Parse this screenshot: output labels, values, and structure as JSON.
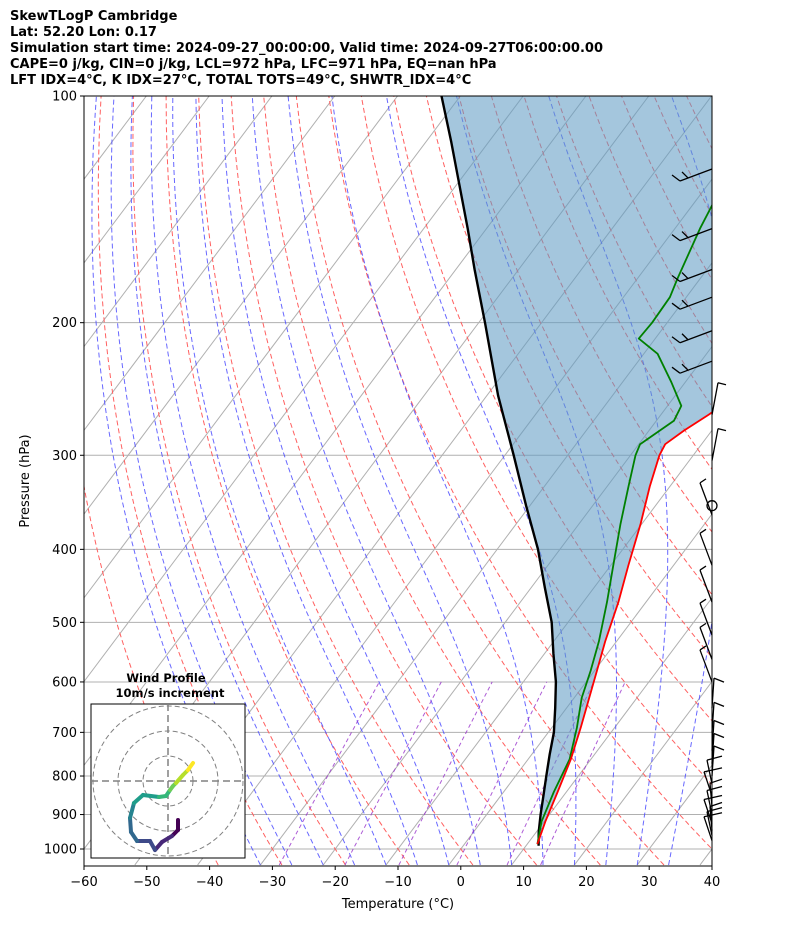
{
  "header": {
    "line1": "SkewTLogP Cambridge",
    "line2": "Lat: 52.20   Lon: 0.17",
    "line3": "Simulation start time: 2024-09-27_00:00:00, Valid time: 2024-09-27T06:00:00.00",
    "line4": "CAPE=0 j/kg, CIN=0 j/kg, LCL=972 hPa, LFC=971 hPa, EQ=nan hPa",
    "line5": "LFT IDX=4°C, K IDX=27°C, TOTAL TOTS=49°C, SHWTR_IDX=4°C"
  },
  "chart_data": {
    "type": "line",
    "subtype": "skew-T log-P diagram",
    "xlabel": "Temperature (°C)",
    "ylabel": "Pressure (hPa)",
    "xlim": [
      -60,
      40
    ],
    "ylim": [
      1050,
      100
    ],
    "y_scale": "log",
    "x_ticks": [
      -60,
      -50,
      -40,
      -30,
      -20,
      -10,
      0,
      10,
      20,
      30,
      40
    ],
    "y_ticks": [
      1000,
      900,
      800,
      700,
      600,
      500,
      400,
      300,
      200,
      100
    ],
    "grid": true,
    "background_lines": [
      "dry adiabats (red dashed)",
      "moist adiabats (blue dashed)",
      "mixing ratio lines (purple dashed)",
      "isotherms (grey)"
    ],
    "series": [
      {
        "role": "temperature",
        "color": "#ff0000",
        "points": [
          [
            985,
            11.6
          ],
          [
            920,
            10.2
          ],
          [
            840,
            8.6
          ],
          [
            760,
            6.8
          ],
          [
            690,
            4.6
          ],
          [
            630,
            2.4
          ],
          [
            580,
            0.4
          ],
          [
            530,
            -1.8
          ],
          [
            470,
            -4.4
          ],
          [
            420,
            -7.2
          ],
          [
            370,
            -10.2
          ],
          [
            330,
            -13.2
          ],
          [
            300,
            -15.4
          ],
          [
            290,
            -15.8
          ],
          [
            278,
            -14.4
          ],
          [
            265,
            -12.4
          ],
          [
            250,
            -10.2
          ],
          [
            235,
            -8.2
          ],
          [
            220,
            -6.4
          ],
          [
            210,
            -4.6
          ],
          [
            200,
            -2.8
          ],
          [
            175,
            -0.2
          ],
          [
            150,
            2.8
          ],
          [
            125,
            6.2
          ],
          [
            110,
            8.6
          ],
          [
            100,
            10.2
          ]
        ]
      },
      {
        "role": "dewpoint",
        "color": "#008000",
        "points": [
          [
            985,
            11.6
          ],
          [
            920,
            9.6
          ],
          [
            840,
            8.0
          ],
          [
            760,
            6.6
          ],
          [
            690,
            4.0
          ],
          [
            630,
            1.2
          ],
          [
            580,
            -0.6
          ],
          [
            530,
            -2.8
          ],
          [
            470,
            -6.2
          ],
          [
            420,
            -9.6
          ],
          [
            370,
            -13.4
          ],
          [
            330,
            -16.6
          ],
          [
            300,
            -19.2
          ],
          [
            290,
            -19.8
          ],
          [
            270,
            -17.2
          ],
          [
            258,
            -17.8
          ],
          [
            240,
            -22.2
          ],
          [
            220,
            -27.8
          ],
          [
            210,
            -32.6
          ],
          [
            200,
            -32.4
          ],
          [
            185,
            -32.6
          ],
          [
            175,
            -33.6
          ],
          [
            150,
            -36.0
          ],
          [
            125,
            -38.2
          ],
          [
            110,
            -40.2
          ],
          [
            100,
            -41.8
          ]
        ]
      },
      {
        "role": "parcel profile",
        "color": "#000000",
        "points": [
          [
            990,
            12.0
          ],
          [
            950,
            10.4
          ],
          [
            900,
            8.6
          ],
          [
            850,
            6.8
          ],
          [
            800,
            4.9
          ],
          [
            750,
            2.9
          ],
          [
            700,
            0.9
          ],
          [
            650,
            -1.8
          ],
          [
            600,
            -4.8
          ],
          [
            550,
            -8.6
          ],
          [
            500,
            -12.6
          ],
          [
            450,
            -17.8
          ],
          [
            400,
            -23.5
          ],
          [
            350,
            -30.6
          ],
          [
            300,
            -38.6
          ],
          [
            250,
            -48.2
          ],
          [
            200,
            -59.0
          ],
          [
            170,
            -67.0
          ],
          [
            150,
            -73.0
          ],
          [
            130,
            -80.0
          ],
          [
            115,
            -86.0
          ],
          [
            100,
            -93.0
          ]
        ]
      }
    ],
    "wind_barbs_pressure_hPa": [
      975,
      960,
      945,
      925,
      900,
      880,
      850,
      820,
      800,
      770,
      740,
      700,
      650,
      600,
      560,
      520,
      470,
      420,
      360,
      305,
      265,
      225,
      205,
      185,
      170,
      150,
      125
    ],
    "inset": {
      "title": "Wind Profile",
      "subtitle": "10m/s increment",
      "rings": 3,
      "colormap": "viridis"
    }
  }
}
